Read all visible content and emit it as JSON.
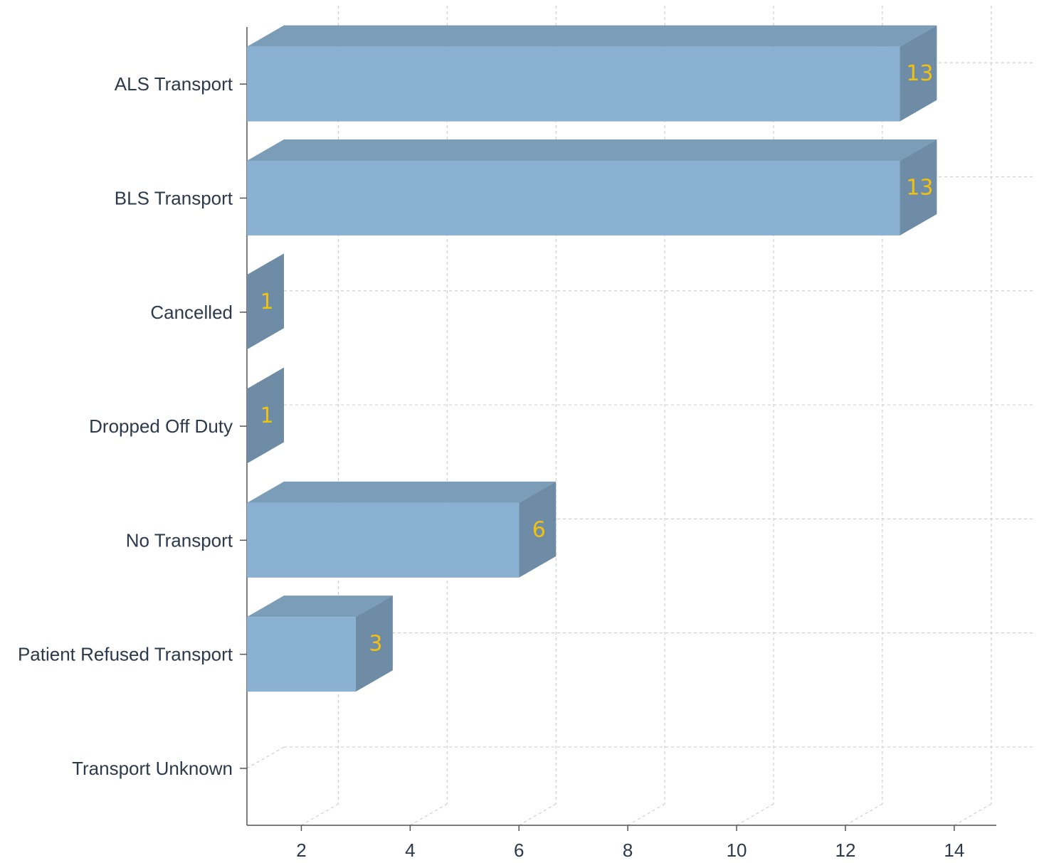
{
  "chart_data": {
    "type": "bar",
    "orientation": "horizontal",
    "style": "3d",
    "categories": [
      "ALS Transport",
      "BLS Transport",
      "Cancelled",
      "Dropped Off Duty",
      "No Transport",
      "Patient Refused Transport",
      "Transport Unknown"
    ],
    "values": [
      13,
      13,
      1,
      1,
      6,
      3,
      0
    ],
    "data_labels": [
      "13",
      "13",
      "1",
      "1",
      "6",
      "3",
      ""
    ],
    "title": "",
    "xlabel": "",
    "ylabel": "",
    "xlim": [
      1,
      14.8
    ],
    "x_ticks": [
      2,
      4,
      6,
      8,
      10,
      12,
      14
    ],
    "x_tick_labels": [
      "2",
      "4",
      "6",
      "8",
      "10",
      "12",
      "14"
    ],
    "grid": true,
    "colors": {
      "bar_front": "#8ab1d1",
      "bar_top": "#7b9db8",
      "bar_side": "#6e8ca6",
      "data_label": "#f2c10f",
      "text": "#2c3a4b"
    }
  }
}
